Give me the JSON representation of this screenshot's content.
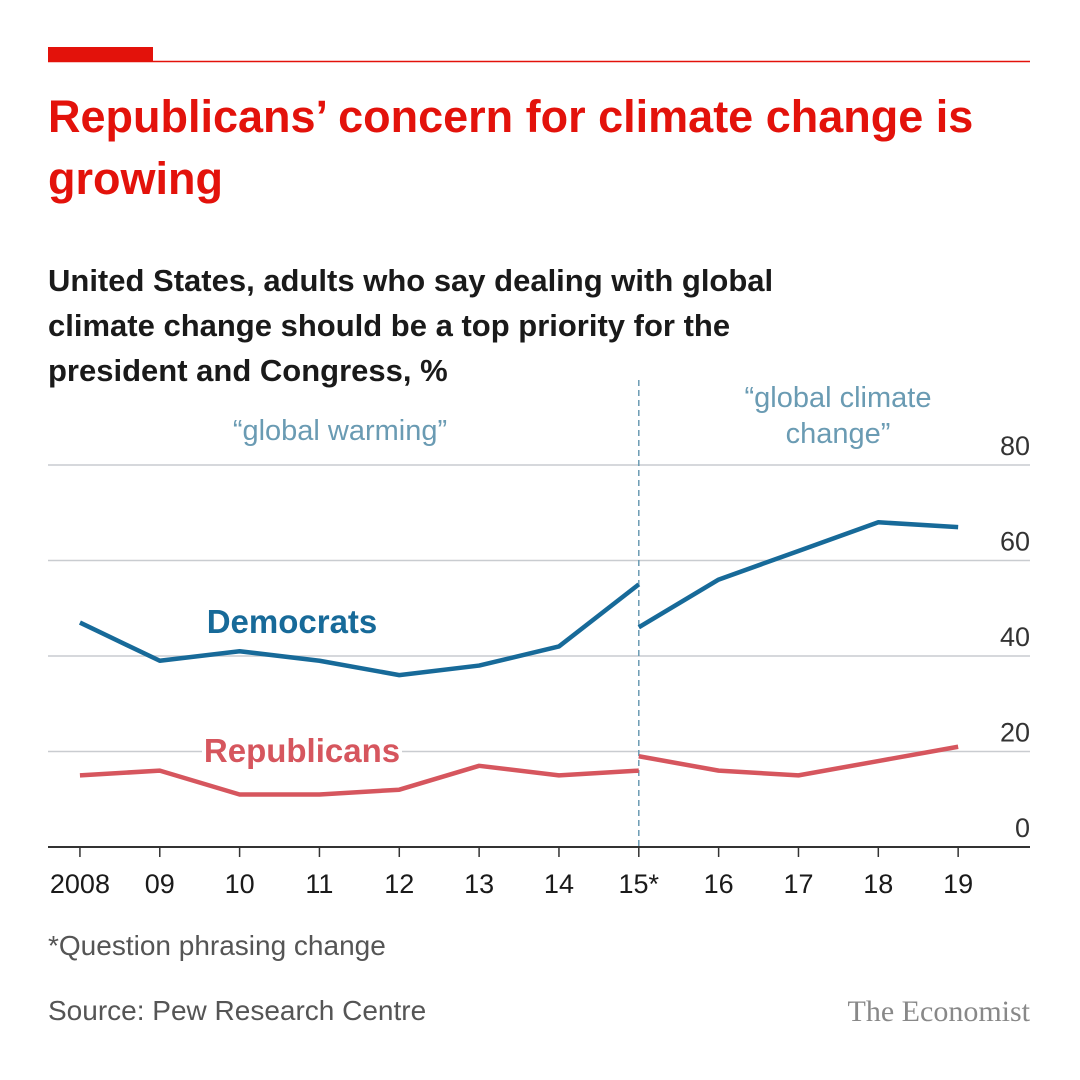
{
  "chart_data": {
    "type": "line",
    "title": "Republicans’ concern for climate change is growing",
    "subtitle": "United States, adults who say dealing with global climate change should be a top priority for the president and Congress, %",
    "annotations": [
      "“global warming”",
      "“global climate change”"
    ],
    "phrasing_change_x": 2015,
    "footnote": "*Question phrasing change",
    "source": "Source: Pew Research Centre",
    "brand": "The Economist",
    "x": [
      2008,
      2009,
      2010,
      2011,
      2012,
      2013,
      2014,
      2015,
      2015,
      2015,
      2016,
      2017,
      2018,
      2019
    ],
    "series": [
      {
        "name": "Democrats",
        "color": "#176a99",
        "values": [
          47,
          39,
          41,
          39,
          36,
          38,
          42,
          55,
          null,
          46,
          56,
          62,
          68,
          67
        ]
      },
      {
        "name": "Republicans",
        "color": "#d6565e",
        "values": [
          15,
          16,
          11,
          11,
          12,
          17,
          15,
          16,
          null,
          19,
          16,
          15,
          18,
          21
        ]
      }
    ],
    "xlim": [
      2007.6,
      2019.9
    ],
    "xticks": [
      2008,
      {
        "value": 2009,
        "label": "09"
      },
      {
        "value": 2010,
        "label": "10"
      },
      {
        "value": 2011,
        "label": "11"
      },
      {
        "value": 2012,
        "label": "12"
      },
      {
        "value": 2013,
        "label": "13"
      },
      {
        "value": 2014,
        "label": "14"
      },
      {
        "value": 2015,
        "label": "15*"
      },
      {
        "value": 2016,
        "label": "16"
      },
      {
        "value": 2017,
        "label": "17"
      },
      {
        "value": 2018,
        "label": "18"
      },
      {
        "value": 2019,
        "label": "19"
      }
    ],
    "ylim": [
      0,
      80
    ],
    "yticks": [
      0,
      20,
      40,
      60,
      80
    ],
    "grid": true
  }
}
